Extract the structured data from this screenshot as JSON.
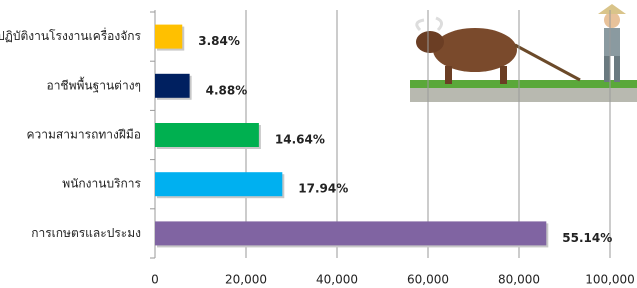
{
  "chart_data": {
    "type": "bar",
    "orientation": "horizontal",
    "categories": [
      "ปฏิบัติงานโรงงานเครื่องจักร",
      "อาชีพพื้นฐานต่างๆ",
      "ความสามารถทางฝีมือ",
      "พนักงานบริการ",
      "การเกษตรและประมง"
    ],
    "series": [
      {
        "colors": [
          "#ffc000",
          "#002060",
          "#00b050",
          "#00b0f0",
          "#8064a2"
        ],
        "values": [
          5990,
          7610,
          22830,
          27980,
          86000
        ],
        "value_labels": [
          "3.84%",
          "4.88%",
          "14.64%",
          "17.94%",
          "55.14%"
        ]
      }
    ],
    "xlim": [
      0,
      100000
    ],
    "xticks": [
      0,
      {
        "value": 20000,
        "label": "20,000"
      },
      {
        "value": 40000,
        "label": "40,000"
      },
      {
        "value": 60000,
        "label": "60,000"
      },
      {
        "value": 80000,
        "label": "80,000"
      },
      {
        "value": 100000,
        "label": "100,000"
      }
    ],
    "grid": true
  }
}
